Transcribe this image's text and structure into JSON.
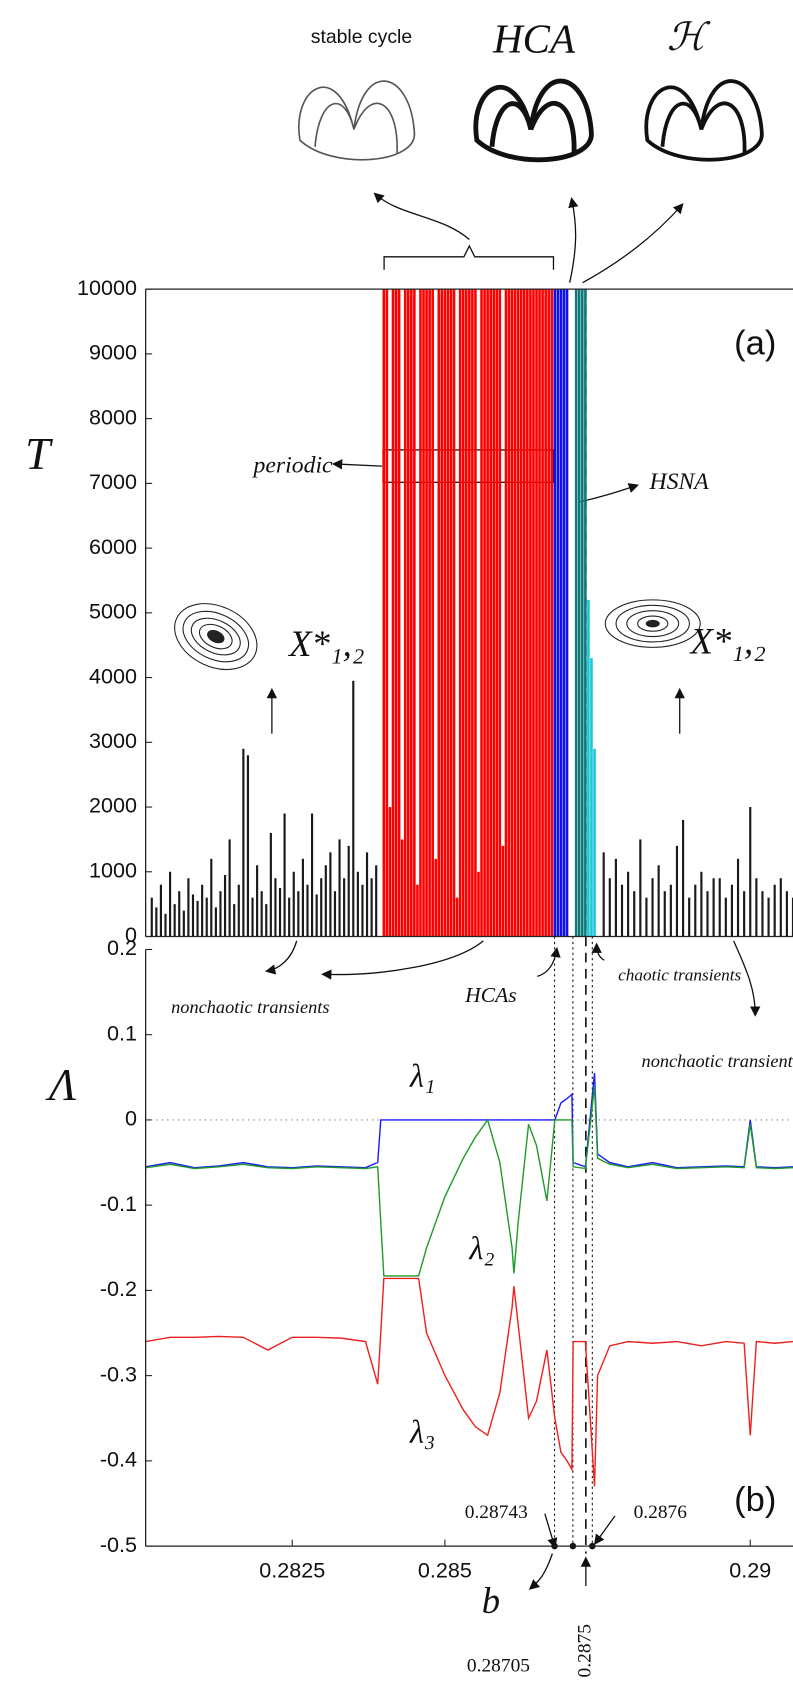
{
  "chart_data": [
    {
      "type": "bar",
      "panel_label": "(a)",
      "y_label": "T",
      "xlim": [
        0.2801,
        0.2907
      ],
      "ylim": [
        0,
        10000
      ],
      "yticks": [
        0,
        1000,
        2000,
        3000,
        4000,
        5000,
        6000,
        7000,
        8000,
        9000,
        10000
      ],
      "series": [
        {
          "color": "#1a1a1a",
          "x": [
            0.2802,
            0.280275,
            0.28035,
            0.280425,
            0.2805,
            0.280575,
            0.28065,
            0.280725,
            0.2808,
            0.280875,
            0.28095,
            0.281025,
            0.2811,
            0.281175,
            0.28125,
            0.281325,
            0.2814,
            0.281475,
            0.28155,
            0.281625,
            0.2817,
            0.281775,
            0.28185,
            0.281925,
            0.282,
            0.282075,
            0.28215,
            0.282225,
            0.2823,
            0.282375,
            0.28245,
            0.282525,
            0.2826,
            0.282675,
            0.28275,
            0.282825,
            0.2829,
            0.282975,
            0.28305,
            0.283125,
            0.2832,
            0.283275,
            0.28335,
            0.283425,
            0.2835,
            0.283575,
            0.28365,
            0.283725,
            0.2838,
            0.283875
          ],
          "values": [
            600,
            450,
            800,
            350,
            1000,
            500,
            700,
            400,
            900,
            650,
            550,
            800,
            600,
            1200,
            450,
            700,
            950,
            1500,
            500,
            800,
            2900,
            2800,
            600,
            1100,
            700,
            500,
            1600,
            900,
            750,
            1900,
            600,
            1000,
            700,
            1200,
            800,
            1900,
            650,
            900,
            1100,
            1300,
            700,
            1500,
            900,
            1400,
            3950,
            1000,
            800,
            1300,
            900,
            1100
          ]
        },
        {
          "color": "#ff0000",
          "x": [
            0.284,
            0.28405,
            0.2841,
            0.28415,
            0.2842,
            0.28425,
            0.2843,
            0.28435,
            0.2844,
            0.28445,
            0.2845,
            0.28455,
            0.2846,
            0.28465,
            0.2847,
            0.28475,
            0.2848,
            0.28485,
            0.2849,
            0.28495,
            0.285,
            0.28505,
            0.2851,
            0.28515,
            0.2852,
            0.28525,
            0.2853,
            0.28535,
            0.2854,
            0.28545,
            0.2855,
            0.28555,
            0.2856,
            0.28565,
            0.2857,
            0.28575,
            0.2858,
            0.28585,
            0.2859,
            0.28595,
            0.286,
            0.28605,
            0.2861,
            0.28615,
            0.2862,
            0.28625,
            0.2863,
            0.28635,
            0.2864,
            0.28645,
            0.2865,
            0.28655,
            0.2866,
            0.28665,
            0.2867,
            0.28675
          ],
          "values": [
            10000,
            10000,
            2000,
            10000,
            10000,
            10000,
            1500,
            10000,
            10000,
            10000,
            10000,
            800,
            10000,
            10000,
            10000,
            10000,
            10000,
            1200,
            10000,
            10000,
            10000,
            10000,
            10000,
            10000,
            600,
            10000,
            10000,
            10000,
            10000,
            10000,
            10000,
            1000,
            10000,
            10000,
            10000,
            10000,
            10000,
            10000,
            10000,
            1400,
            10000,
            10000,
            10000,
            10000,
            10000,
            10000,
            10000,
            10000,
            10000,
            10000,
            10000,
            10000,
            10000,
            10000,
            10000,
            10000
          ]
        },
        {
          "color": "#1010ee",
          "x": [
            0.2868,
            0.28685,
            0.2869,
            0.28695,
            0.287
          ],
          "values": [
            10000,
            10000,
            10000,
            10000,
            10000
          ]
        },
        {
          "color": "#0e7a78",
          "x": [
            0.28715,
            0.2872,
            0.28725,
            0.2873
          ],
          "values": [
            10000,
            10000,
            10000,
            10000
          ]
        },
        {
          "color": "#18c8d8",
          "x": [
            0.28735,
            0.2874,
            0.28745
          ],
          "values": [
            5200,
            4300,
            2900
          ]
        },
        {
          "color": "#1a1a1a",
          "x": [
            0.2876,
            0.2877,
            0.2878,
            0.2879,
            0.288,
            0.2881,
            0.2882,
            0.2883,
            0.2884,
            0.2885,
            0.2886,
            0.2887,
            0.2888,
            0.2889,
            0.289,
            0.2891,
            0.2892,
            0.2893,
            0.2894,
            0.2895,
            0.2896,
            0.2897,
            0.2898,
            0.2899,
            0.29,
            0.2901,
            0.2902,
            0.2903,
            0.2904,
            0.2905,
            0.2906,
            0.2907
          ],
          "values": [
            1300,
            900,
            1200,
            800,
            1000,
            700,
            1500,
            600,
            900,
            1100,
            700,
            800,
            1400,
            1800,
            600,
            800,
            1000,
            700,
            900,
            900,
            600,
            800,
            1200,
            700,
            2000,
            900,
            700,
            600,
            800,
            900,
            700,
            600
          ]
        }
      ],
      "annotations": [
        "periodic",
        "HSNA",
        "X*₁,₂",
        "X*₁,₂",
        "stable cycle",
        "HCA",
        "ℋ"
      ]
    },
    {
      "type": "line",
      "panel_label": "(b)",
      "y_label": "Λ",
      "x_label": "b",
      "xlim": [
        0.2801,
        0.2907
      ],
      "ylim": [
        -0.5,
        0.2
      ],
      "yticks": [
        -0.5,
        -0.4,
        -0.3,
        -0.2,
        -0.1,
        0,
        0.1,
        0.2
      ],
      "xticks": [
        0.2825,
        0.285,
        0.29
      ],
      "x": [
        0.2801,
        0.2805,
        0.2809,
        0.2813,
        0.2817,
        0.2821,
        0.2825,
        0.2829,
        0.2833,
        0.2837,
        0.2839,
        0.28395,
        0.284,
        0.28457,
        0.2847,
        0.285,
        0.2853,
        0.2855,
        0.2857,
        0.2859,
        0.2861,
        0.28613,
        0.2862,
        0.28637,
        0.2865,
        0.28667,
        0.2868,
        0.2869,
        0.287,
        0.28708,
        0.2871,
        0.2873,
        0.28745,
        0.2875,
        0.2877,
        0.288,
        0.2884,
        0.2888,
        0.2892,
        0.2896,
        0.2899,
        0.29,
        0.2901,
        0.2904,
        0.2907
      ],
      "series": [
        {
          "name": "λ₁",
          "color": "#1a1aff",
          "values": [
            -0.055,
            -0.05,
            -0.056,
            -0.054,
            -0.05,
            -0.055,
            -0.056,
            -0.054,
            -0.055,
            -0.056,
            -0.05,
            0,
            0,
            0,
            0,
            0,
            0,
            0,
            0,
            0,
            0,
            0,
            0,
            0,
            0,
            0,
            0,
            0.02,
            0.025,
            0.03,
            -0.05,
            -0.055,
            0.055,
            -0.04,
            -0.05,
            -0.055,
            -0.05,
            -0.056,
            -0.055,
            -0.054,
            -0.055,
            0,
            -0.055,
            -0.056,
            -0.055
          ]
        },
        {
          "name": "λ₂",
          "color": "#1f9a2a",
          "values": [
            -0.056,
            -0.052,
            -0.057,
            -0.055,
            -0.052,
            -0.056,
            -0.057,
            -0.055,
            -0.056,
            -0.057,
            -0.055,
            -0.12,
            -0.183,
            -0.183,
            -0.15,
            -0.09,
            -0.045,
            -0.02,
            0,
            -0.05,
            -0.15,
            -0.18,
            -0.12,
            -0.005,
            -0.03,
            -0.095,
            0,
            0,
            0,
            0,
            -0.055,
            -0.057,
            0.04,
            -0.045,
            -0.052,
            -0.056,
            -0.052,
            -0.057,
            -0.056,
            -0.055,
            -0.056,
            -0.005,
            -0.056,
            -0.057,
            -0.056
          ]
        },
        {
          "name": "λ₃",
          "color": "#ee2020",
          "values": [
            -0.26,
            -0.255,
            -0.255,
            -0.254,
            -0.255,
            -0.27,
            -0.255,
            -0.255,
            -0.256,
            -0.26,
            -0.31,
            -0.25,
            -0.186,
            -0.186,
            -0.25,
            -0.3,
            -0.34,
            -0.36,
            -0.37,
            -0.32,
            -0.22,
            -0.195,
            -0.24,
            -0.35,
            -0.33,
            -0.27,
            -0.35,
            -0.39,
            -0.4,
            -0.41,
            -0.26,
            -0.26,
            -0.43,
            -0.3,
            -0.265,
            -0.26,
            -0.262,
            -0.26,
            -0.265,
            -0.26,
            -0.262,
            -0.37,
            -0.26,
            -0.262,
            -0.26
          ]
        }
      ],
      "annotations": [
        "nonchaotic transients",
        "HCAs",
        "chaotic transients",
        "nonchaotic transients",
        "0.28743",
        "0.28705",
        "0.2875",
        "0.2876"
      ]
    }
  ]
}
